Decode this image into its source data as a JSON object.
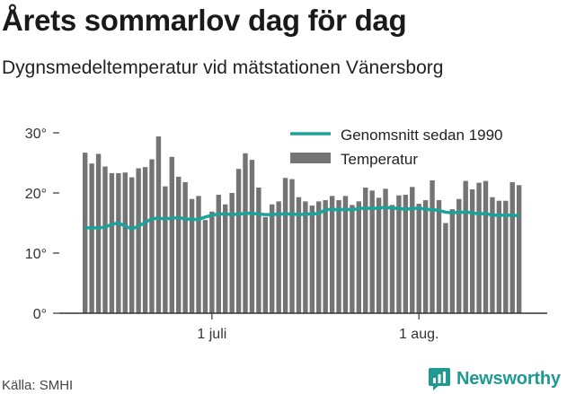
{
  "title": "Årets sommarlov dag för dag",
  "subtitle": "Dygnsmedeltemperatur vid mätstationen Vänersborg",
  "source": "Källa: SMHI",
  "brand": {
    "name": "Newsworthy",
    "icon": "newsworthy-chart-bubble-icon",
    "color": "#1f9a92"
  },
  "colors": {
    "bars": "#747474",
    "line": "#1aa39b",
    "axis": "#333333"
  },
  "chart_data": {
    "type": "bar",
    "title": "Årets sommarlov dag för dag",
    "subtitle": "Dygnsmedeltemperatur vid mätstationen Vänersborg",
    "ylim": [
      0,
      30
    ],
    "y_ticks": [
      {
        "value": 0,
        "label": "0°"
      },
      {
        "value": 10,
        "label": "10°"
      },
      {
        "value": 20,
        "label": "20°"
      },
      {
        "value": 30,
        "label": "30°"
      }
    ],
    "x_ticks": [
      {
        "index": 19,
        "label": "1 juli"
      },
      {
        "index": 50,
        "label": "1 aug."
      }
    ],
    "grid": false,
    "legend_position": "top-right",
    "series": [
      {
        "name": "Temperatur",
        "type": "bar",
        "values": [
          26.7,
          24.9,
          26.5,
          24.4,
          23.3,
          23.3,
          23.4,
          22.6,
          24.1,
          24.3,
          25.6,
          29.4,
          21.1,
          26.0,
          22.7,
          21.8,
          19.0,
          19.5,
          15.5,
          16.9,
          19.7,
          18.1,
          20.0,
          24.0,
          26.6,
          25.5,
          20.9,
          16.0,
          18.1,
          18.6,
          22.5,
          22.3,
          19.3,
          18.6,
          17.9,
          18.6,
          18.8,
          19.5,
          18.8,
          19.5,
          18.0,
          18.6,
          20.9,
          20.4,
          19.2,
          20.7,
          18.0,
          19.6,
          19.7,
          21.0,
          18.2,
          18.8,
          22.1,
          18.8,
          15.0,
          17.3,
          19.0,
          22.0,
          20.6,
          21.7,
          22.0,
          19.3,
          18.7,
          18.7,
          21.8,
          21.3
        ]
      },
      {
        "name": "Genomsnitt sedan 1990",
        "type": "line",
        "values": [
          14.2,
          14.2,
          14.2,
          14.3,
          14.8,
          15.0,
          14.5,
          14.0,
          14.5,
          15.1,
          15.7,
          15.8,
          15.7,
          15.8,
          15.9,
          15.7,
          15.6,
          15.6,
          16.0,
          16.3,
          16.5,
          16.5,
          16.4,
          16.5,
          16.6,
          16.6,
          16.5,
          16.4,
          16.4,
          16.5,
          16.5,
          16.5,
          16.4,
          16.5,
          16.5,
          16.6,
          17.2,
          17.3,
          17.2,
          17.3,
          17.2,
          17.4,
          17.5,
          17.4,
          17.5,
          17.6,
          17.5,
          17.4,
          17.3,
          17.4,
          17.5,
          17.3,
          17.2,
          17.1,
          16.8,
          16.7,
          16.8,
          16.8,
          16.7,
          16.5,
          16.6,
          16.3,
          16.3,
          16.3,
          16.3,
          16.2
        ]
      }
    ]
  }
}
